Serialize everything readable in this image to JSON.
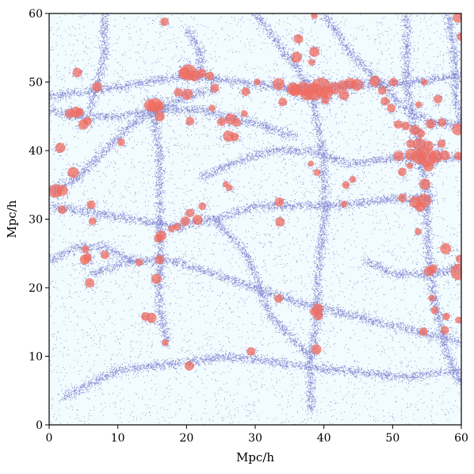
{
  "chart_data": {
    "type": "scatter",
    "title": "",
    "xlabel": "Mpc/h",
    "ylabel": "Mpc/h",
    "xlim": [
      0,
      60
    ],
    "ylim": [
      0,
      60
    ],
    "xticks": [
      0,
      10,
      20,
      30,
      40,
      50,
      60
    ],
    "yticks": [
      0,
      10,
      20,
      30,
      40,
      50,
      60
    ],
    "grid": false,
    "legend": "none",
    "background_color": "#f2fbfd",
    "particle_color": "#2a2ab0",
    "halo_color": "#f26b5b",
    "filaments": [
      [
        [
          0,
          48
        ],
        [
          8,
          49
        ],
        [
          14,
          50
        ],
        [
          20,
          51
        ],
        [
          28,
          50
        ],
        [
          36,
          49
        ],
        [
          44,
          49.5
        ],
        [
          52,
          50
        ],
        [
          60,
          51
        ]
      ],
      [
        [
          0,
          34
        ],
        [
          4,
          36
        ],
        [
          8,
          40
        ],
        [
          12,
          44
        ],
        [
          16,
          46
        ],
        [
          20,
          48
        ],
        [
          24,
          49
        ]
      ],
      [
        [
          52,
          60
        ],
        [
          52,
          50
        ],
        [
          53,
          44
        ],
        [
          54,
          39
        ],
        [
          55,
          33
        ],
        [
          55,
          26
        ],
        [
          56,
          18
        ],
        [
          58,
          10
        ],
        [
          60,
          6
        ]
      ],
      [
        [
          50,
          39
        ],
        [
          54,
          39
        ],
        [
          60,
          39
        ]
      ],
      [
        [
          0,
          46
        ],
        [
          4,
          45
        ],
        [
          10,
          45
        ],
        [
          16,
          46
        ],
        [
          22,
          46
        ],
        [
          30,
          44
        ],
        [
          36,
          42
        ]
      ],
      [
        [
          15,
          46
        ],
        [
          16,
          40
        ],
        [
          16,
          32
        ],
        [
          16,
          24
        ],
        [
          16,
          18
        ],
        [
          17,
          12
        ]
      ],
      [
        [
          20,
          58
        ],
        [
          22,
          54
        ],
        [
          22,
          51
        ]
      ],
      [
        [
          30,
          60
        ],
        [
          33,
          56
        ],
        [
          36,
          52
        ],
        [
          38,
          49
        ]
      ],
      [
        [
          38,
          49
        ],
        [
          39,
          44
        ],
        [
          40,
          38
        ],
        [
          40,
          30
        ],
        [
          39,
          22
        ],
        [
          39,
          16
        ],
        [
          38,
          10
        ],
        [
          38,
          2
        ]
      ],
      [
        [
          0,
          32
        ],
        [
          6,
          31
        ],
        [
          12,
          30
        ],
        [
          18,
          29
        ],
        [
          24,
          30
        ],
        [
          30,
          32
        ],
        [
          36,
          32
        ],
        [
          42,
          32
        ],
        [
          50,
          33
        ],
        [
          56,
          33
        ]
      ],
      [
        [
          6,
          22
        ],
        [
          12,
          24
        ],
        [
          18,
          24
        ],
        [
          24,
          22
        ],
        [
          30,
          20
        ],
        [
          36,
          18
        ],
        [
          44,
          16
        ],
        [
          52,
          14
        ],
        [
          60,
          12
        ]
      ],
      [
        [
          2,
          4
        ],
        [
          10,
          8
        ],
        [
          18,
          9
        ],
        [
          26,
          10
        ],
        [
          34,
          9
        ],
        [
          42,
          8
        ],
        [
          52,
          7
        ],
        [
          60,
          8
        ]
      ],
      [
        [
          40,
          60
        ],
        [
          44,
          54
        ],
        [
          48,
          50
        ],
        [
          52,
          46
        ],
        [
          56,
          44
        ],
        [
          60,
          44
        ]
      ],
      [
        [
          22,
          36
        ],
        [
          26,
          38
        ],
        [
          32,
          40
        ],
        [
          38,
          40
        ],
        [
          44,
          38
        ],
        [
          50,
          39
        ]
      ],
      [
        [
          8,
          60
        ],
        [
          8,
          54
        ],
        [
          7,
          50
        ],
        [
          6,
          46
        ]
      ],
      [
        [
          58,
          60
        ],
        [
          59,
          54
        ],
        [
          59,
          48
        ],
        [
          60,
          44
        ]
      ],
      [
        [
          24,
          30
        ],
        [
          28,
          26
        ],
        [
          30,
          22
        ],
        [
          32,
          16
        ],
        [
          36,
          12
        ],
        [
          38,
          10
        ]
      ],
      [
        [
          0,
          24
        ],
        [
          4,
          26
        ],
        [
          8,
          26
        ],
        [
          12,
          24
        ]
      ],
      [
        [
          46,
          24
        ],
        [
          50,
          22
        ],
        [
          55,
          22
        ],
        [
          60,
          23
        ]
      ]
    ],
    "halos": [
      [
        16.8,
        58.8,
        1.0
      ],
      [
        38.6,
        59.7,
        0.8
      ],
      [
        59.5,
        59.4,
        1.2
      ],
      [
        60,
        56.6,
        1.0
      ],
      [
        36.3,
        56.3,
        1.1
      ],
      [
        36.0,
        53.6,
        1.3
      ],
      [
        38.6,
        54.4,
        1.2
      ],
      [
        38.2,
        52.9,
        0.8
      ],
      [
        4.1,
        51.4,
        1.1
      ],
      [
        7.0,
        49.3,
        1.2
      ],
      [
        18.8,
        48.5,
        1.0
      ],
      [
        19.7,
        51.3,
        1.4
      ],
      [
        20.3,
        51.4,
        1.9
      ],
      [
        21.2,
        50.9,
        1.3
      ],
      [
        22.2,
        51.3,
        1.1
      ],
      [
        23.4,
        50.9,
        1.0
      ],
      [
        24.1,
        49.1,
        1.0
      ],
      [
        20.1,
        48.2,
        1.3
      ],
      [
        28.6,
        48.6,
        1.0
      ],
      [
        30.3,
        50.0,
        0.8
      ],
      [
        33.4,
        49.7,
        1.4
      ],
      [
        35.5,
        49.0,
        1.5
      ],
      [
        37.0,
        49.0,
        1.7
      ],
      [
        38.5,
        48.6,
        2.1
      ],
      [
        39.6,
        49.2,
        2.3
      ],
      [
        40.4,
        48.5,
        1.5
      ],
      [
        41.6,
        49.1,
        1.4
      ],
      [
        42.8,
        49.5,
        1.2
      ],
      [
        43.8,
        49.8,
        1.3
      ],
      [
        44.8,
        49.6,
        1.4
      ],
      [
        47.4,
        50.1,
        1.3
      ],
      [
        50.1,
        50.0,
        1.0
      ],
      [
        42.9,
        48.1,
        1.2
      ],
      [
        34.0,
        47.1,
        1.0
      ],
      [
        35.9,
        48.8,
        1.4
      ],
      [
        40.2,
        47.4,
        1.0
      ],
      [
        37.5,
        48.2,
        1.4
      ],
      [
        48.5,
        48.8,
        1.0
      ],
      [
        54.6,
        50.0,
        0.8
      ],
      [
        56.6,
        47.5,
        1.0
      ],
      [
        48.9,
        47.2,
        1.0
      ],
      [
        49.8,
        46.2,
        1.0
      ],
      [
        53.8,
        46.7,
        0.8
      ],
      [
        3.0,
        45.4,
        1.1
      ],
      [
        3.9,
        45.6,
        1.3
      ],
      [
        4.4,
        45.6,
        1.0
      ],
      [
        14.7,
        46.6,
        1.4
      ],
      [
        15.4,
        46.6,
        1.7
      ],
      [
        16.0,
        46.5,
        1.2
      ],
      [
        16.1,
        45.0,
        1.2
      ],
      [
        20.5,
        44.3,
        1.0
      ],
      [
        23.7,
        46.2,
        0.8
      ],
      [
        26.4,
        44.6,
        1.3
      ],
      [
        25.1,
        44.2,
        1.0
      ],
      [
        27.3,
        44.1,
        1.0
      ],
      [
        28.4,
        45.4,
        0.8
      ],
      [
        5.0,
        43.8,
        1.2
      ],
      [
        5.6,
        44.3,
        1.0
      ],
      [
        26.1,
        42.1,
        1.3
      ],
      [
        27.0,
        42.0,
        1.0
      ],
      [
        1.6,
        40.4,
        1.2
      ],
      [
        10.5,
        41.2,
        0.9
      ],
      [
        50.8,
        43.8,
        1.0
      ],
      [
        51.9,
        43.6,
        1.0
      ],
      [
        53.2,
        43.0,
        1.2
      ],
      [
        54.1,
        42.5,
        1.0
      ],
      [
        55.5,
        43.9,
        1.1
      ],
      [
        57.2,
        44.1,
        1.0
      ],
      [
        59.5,
        43.1,
        1.4
      ],
      [
        52.6,
        41.0,
        1.0
      ],
      [
        53.9,
        40.9,
        1.5
      ],
      [
        55.2,
        40.7,
        1.2
      ],
      [
        57.1,
        41.0,
        1.0
      ],
      [
        50.9,
        39.2,
        1.2
      ],
      [
        52.7,
        39.4,
        1.4
      ],
      [
        53.9,
        39.1,
        1.7
      ],
      [
        55.0,
        39.0,
        2.2
      ],
      [
        56.3,
        39.1,
        1.5
      ],
      [
        57.6,
        39.3,
        1.2
      ],
      [
        59.6,
        39.2,
        1.0
      ],
      [
        51.4,
        36.9,
        1.0
      ],
      [
        52.5,
        37.8,
        0.8
      ],
      [
        54.7,
        35.1,
        1.3
      ],
      [
        55.2,
        37.7,
        1.2
      ],
      [
        38.1,
        38.1,
        0.7
      ],
      [
        39.0,
        36.8,
        0.8
      ],
      [
        3.5,
        36.8,
        1.3
      ],
      [
        0.9,
        34.1,
        1.6
      ],
      [
        1.9,
        34.2,
        1.3
      ],
      [
        26.2,
        34.6,
        0.8
      ],
      [
        25.7,
        35.1,
        0.7
      ],
      [
        43.2,
        35.0,
        0.9
      ],
      [
        44.2,
        35.8,
        0.8
      ],
      [
        51.4,
        33.1,
        1.0
      ],
      [
        53.3,
        32.5,
        1.4
      ],
      [
        54.6,
        32.7,
        1.6
      ],
      [
        54.0,
        31.8,
        1.2
      ],
      [
        1.9,
        31.4,
        1.0
      ],
      [
        6.1,
        32.1,
        1.0
      ],
      [
        6.3,
        29.7,
        0.9
      ],
      [
        20.5,
        30.9,
        1.0
      ],
      [
        21.6,
        29.9,
        1.2
      ],
      [
        19.8,
        29.7,
        1.1
      ],
      [
        22.3,
        31.9,
        0.9
      ],
      [
        33.5,
        32.5,
        1.1
      ],
      [
        33.6,
        29.6,
        1.1
      ],
      [
        42.9,
        32.2,
        0.8
      ],
      [
        17.8,
        28.6,
        0.8
      ],
      [
        18.6,
        28.9,
        0.9
      ],
      [
        16.3,
        27.6,
        1.2
      ],
      [
        15.9,
        27.2,
        1.0
      ],
      [
        53.7,
        28.2,
        0.8
      ],
      [
        5.3,
        25.6,
        0.9
      ],
      [
        5.2,
        24.1,
        1.2
      ],
      [
        5.6,
        24.4,
        1.0
      ],
      [
        8.1,
        24.8,
        1.0
      ],
      [
        13.1,
        23.7,
        0.9
      ],
      [
        16.1,
        24.1,
        1.1
      ],
      [
        57.7,
        25.7,
        1.3
      ],
      [
        59.8,
        24.2,
        1.0
      ],
      [
        15.6,
        21.3,
        1.2
      ],
      [
        5.9,
        20.7,
        1.1
      ],
      [
        55.3,
        22.4,
        1.2
      ],
      [
        55.9,
        22.8,
        1.0
      ],
      [
        59.6,
        22.3,
        1.9
      ],
      [
        33.4,
        18.4,
        1.0
      ],
      [
        55.7,
        18.5,
        0.8
      ],
      [
        39.1,
        16.9,
        1.3
      ],
      [
        38.6,
        16.5,
        1.0
      ],
      [
        39.2,
        15.9,
        1.1
      ],
      [
        14.0,
        15.8,
        1.0
      ],
      [
        14.9,
        15.6,
        1.2
      ],
      [
        57.8,
        15.8,
        0.9
      ],
      [
        56.1,
        16.7,
        0.9
      ],
      [
        54.5,
        13.6,
        1.0
      ],
      [
        57.6,
        13.8,
        1.0
      ],
      [
        59.6,
        15.3,
        0.8
      ],
      [
        16.9,
        12.0,
        0.8
      ],
      [
        29.4,
        10.7,
        1.0
      ],
      [
        38.9,
        11.0,
        1.2
      ],
      [
        20.4,
        8.6,
        1.1
      ]
    ]
  }
}
